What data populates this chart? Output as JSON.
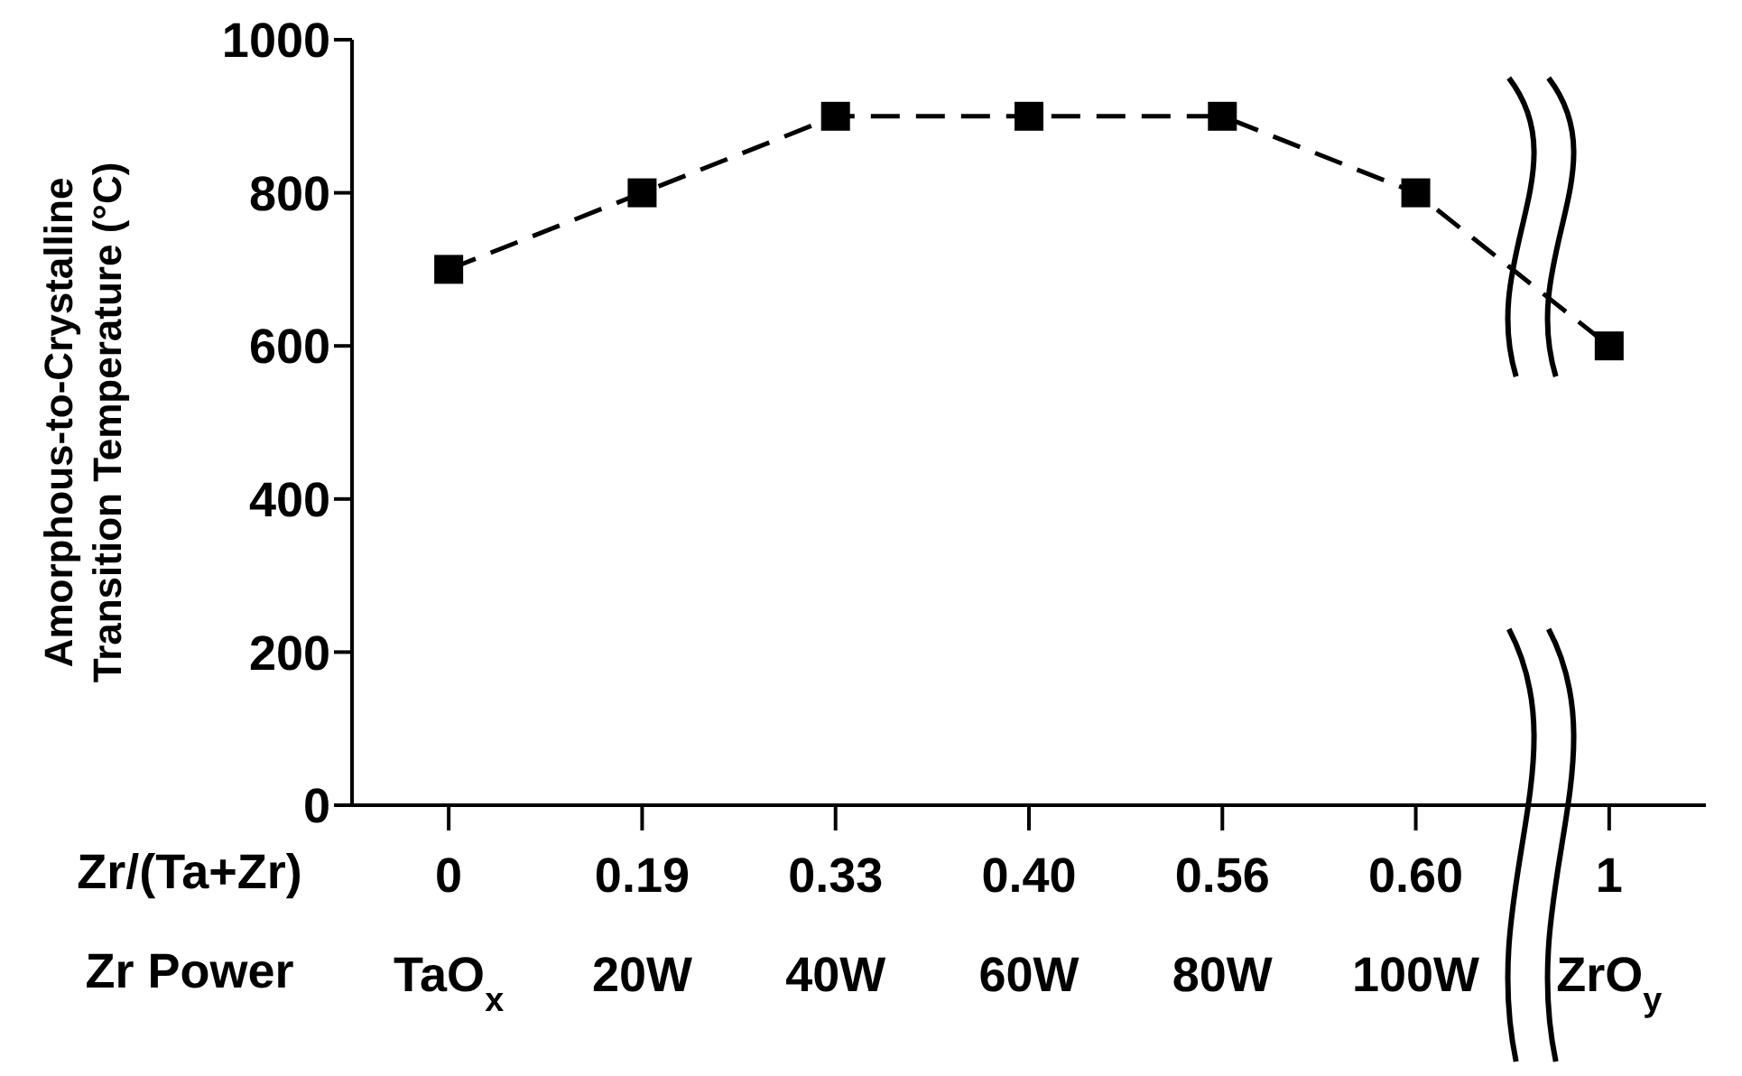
{
  "chart_data": {
    "type": "line",
    "ylabel": "Amorphous-to-Crystalline\nTransition Temperature (°C)",
    "categories": [
      "0\nTaO$_{x}$",
      "0.19\n20W",
      "0.33\n40W",
      "0.40\n60W",
      "0.56\n80W",
      "0.60\n100W",
      "1\nZrO$_{y}$"
    ],
    "series": [
      {
        "color": "#000000",
        "values": [
          700,
          800,
          900,
          900,
          900,
          800,
          600
        ]
      }
    ],
    "ylim": [
      0,
      1000
    ],
    "yticks": [
      0,
      200,
      400,
      600,
      800,
      1000
    ],
    "grid": false,
    "legend": false,
    "marker": "square",
    "line_style": "dashed",
    "annotations": [
      "Zr/(Ta+Zr)",
      "Zr Power"
    ]
  }
}
